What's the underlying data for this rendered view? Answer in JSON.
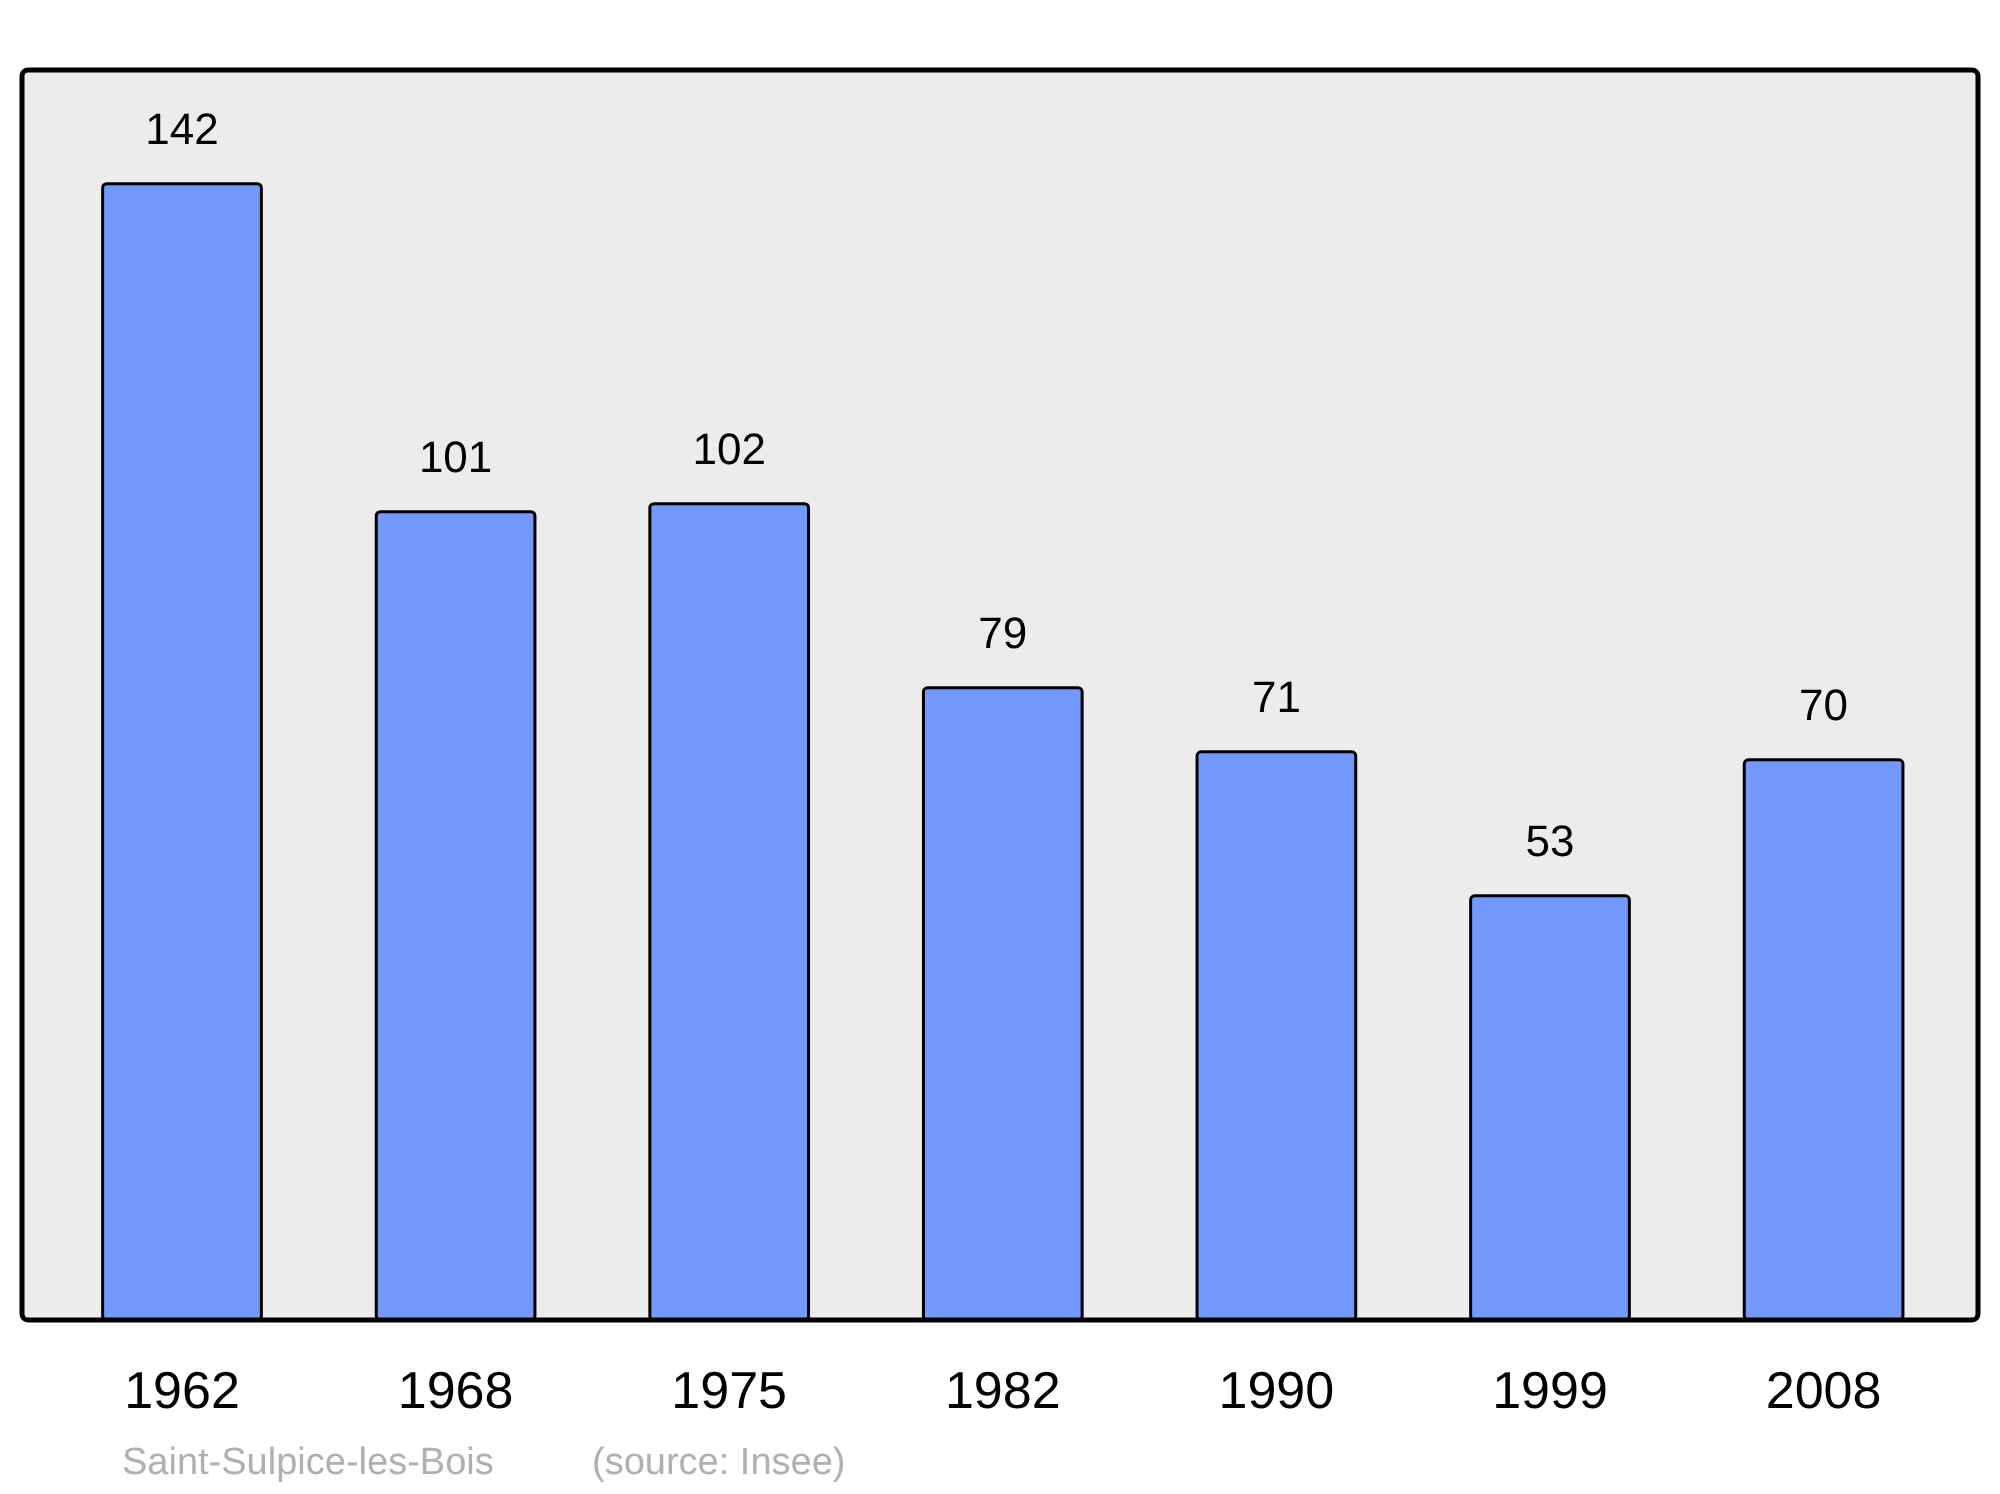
{
  "chart_data": {
    "type": "bar",
    "categories": [
      "1962",
      "1968",
      "1975",
      "1982",
      "1990",
      "1999",
      "2008"
    ],
    "values": [
      142,
      101,
      102,
      79,
      71,
      53,
      70
    ],
    "color": "#7399ff",
    "data_labels": true,
    "annotations": [
      "Saint-Sulpice-les-Bois",
      "(source: Insee)"
    ]
  }
}
